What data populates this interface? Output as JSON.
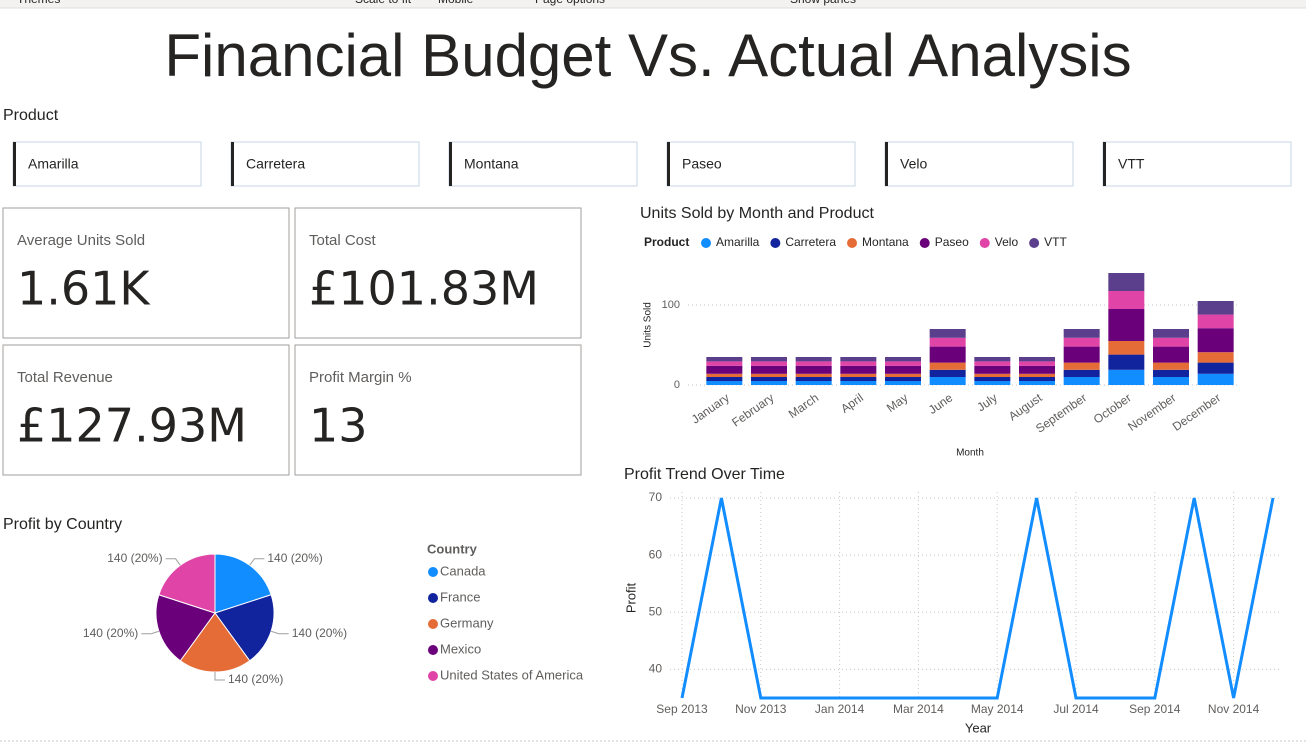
{
  "toolbar": [
    "Themes",
    "Scale to fit",
    "Mobile",
    "Page options",
    "Show panes"
  ],
  "header": {
    "title": "Financial Budget Vs. Actual Analysis"
  },
  "slicer": {
    "title": "Product",
    "items": [
      "Amarilla",
      "Carretera",
      "Montana",
      "Paseo",
      "Velo",
      "VTT"
    ]
  },
  "cards": [
    {
      "label": "Average Units Sold",
      "value": "1.61K"
    },
    {
      "label": "Total Cost",
      "value": "£101.83M"
    },
    {
      "label": "Total Revenue",
      "value": "£127.93M"
    },
    {
      "label": "Profit Margin %",
      "value": "13"
    }
  ],
  "chart_data": [
    {
      "type": "bar",
      "stacked": true,
      "title": "Units Sold by Month and Product",
      "legend_title": "Product",
      "categories": [
        "January",
        "February",
        "March",
        "April",
        "May",
        "June",
        "July",
        "August",
        "September",
        "October",
        "November",
        "December"
      ],
      "series": [
        {
          "name": "Amarilla",
          "color": "#118dff",
          "values": [
            5,
            5,
            5,
            5,
            5,
            10,
            5,
            5,
            10,
            19,
            10,
            14
          ]
        },
        {
          "name": "Carretera",
          "color": "#12239e",
          "values": [
            5,
            5,
            5,
            5,
            5,
            9,
            5,
            5,
            9,
            19,
            9,
            14
          ]
        },
        {
          "name": "Montana",
          "color": "#e66c37",
          "values": [
            4,
            4,
            4,
            4,
            4,
            9,
            4,
            4,
            9,
            17,
            9,
            13
          ]
        },
        {
          "name": "Paseo",
          "color": "#6b007b",
          "values": [
            10,
            10,
            10,
            10,
            10,
            20,
            10,
            10,
            20,
            40,
            20,
            30
          ]
        },
        {
          "name": "Velo",
          "color": "#e044a7",
          "values": [
            5.5,
            5.5,
            5.5,
            5.5,
            5.5,
            11,
            5.5,
            5.5,
            11,
            22.5,
            11,
            17
          ]
        },
        {
          "name": "VTT",
          "color": "#5b3f8c",
          "values": [
            5.5,
            5.5,
            5.5,
            5.5,
            5.5,
            11,
            5.5,
            5.5,
            11,
            22.5,
            11,
            17
          ]
        }
      ],
      "ylim": [
        0,
        150
      ],
      "yticks": [
        0,
        100
      ],
      "grid": true,
      "xlabel": "Month",
      "ylabel": "Units Sold"
    },
    {
      "type": "pie",
      "title": "Profit by Country",
      "legend_title": "Country",
      "categories": [
        "Canada",
        "France",
        "Germany",
        "Mexico",
        "United States of America"
      ],
      "values": [
        140,
        140,
        140,
        140,
        140
      ],
      "value_labels": [
        "140 (20%)",
        "140 (20%)",
        "140 (20%)",
        "140 (20%)",
        "140 (20%)"
      ],
      "colors": [
        "#118dff",
        "#12239e",
        "#e66c37",
        "#6b007b",
        "#e044a7"
      ]
    },
    {
      "type": "line",
      "title": "Profit Trend Over Time",
      "x": [
        "Sep 2013",
        null,
        "Nov 2013",
        null,
        "Jan 2014",
        null,
        "Mar 2014",
        null,
        "May 2014",
        null,
        "Jul 2014",
        null,
        "Sep 2014",
        null,
        "Nov 2014",
        null
      ],
      "values": [
        35,
        70,
        35,
        35,
        35,
        35,
        35,
        35,
        35,
        70,
        35,
        35,
        35,
        70,
        35,
        70
      ],
      "color": "#118dff",
      "ylim": [
        35,
        70
      ],
      "yticks": [
        40,
        50,
        60,
        70
      ],
      "grid": true,
      "xlabel": "Year",
      "ylabel": "Profit"
    }
  ]
}
